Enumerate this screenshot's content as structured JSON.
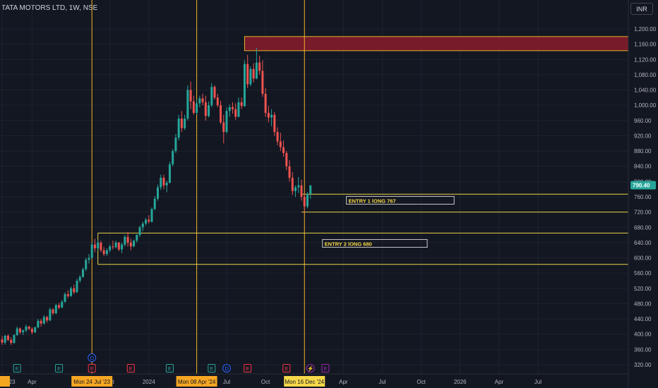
{
  "header": {
    "symbol_title": "TATA MOTORS LTD, 1W, NSE",
    "currency": "INR"
  },
  "chart_data": {
    "type": "candlestick",
    "price_axis": {
      "ticks": [
        1200,
        1160,
        1120,
        1080,
        1040,
        1000,
        960,
        920,
        880,
        840,
        800,
        760,
        720,
        680,
        640,
        600,
        560,
        520,
        480,
        440,
        400,
        360,
        320
      ],
      "tick_labels": [
        "1,200.00",
        "1,160.00",
        "1,120.00",
        "1,080.00",
        "1,040.00",
        "1,000.00",
        "960.00",
        "920.00",
        "880.00",
        "840.00",
        "800.00",
        "760.00",
        "720.00",
        "680.00",
        "640.00",
        "600.00",
        "560.00",
        "520.00",
        "480.00",
        "440.00",
        "400.00",
        "360.00",
        "320.00"
      ],
      "range": [
        307,
        1220
      ]
    },
    "current_price": {
      "value": 790.4,
      "label": "790.40",
      "color": "#26a69a"
    },
    "time_axis": {
      "labels": [
        {
          "text": "22 '23",
          "idx": 0
        },
        {
          "text": "Apr",
          "idx": 10
        },
        {
          "text": "Oct",
          "idx": 36
        },
        {
          "text": "2024",
          "idx": 49
        },
        {
          "text": "Jul",
          "idx": 75
        },
        {
          "text": "Oct",
          "idx": 88
        },
        {
          "text": "Apr",
          "idx": 114
        },
        {
          "text": "Jul",
          "idx": 127
        },
        {
          "text": "Oct",
          "idx": 140
        },
        {
          "text": "2026",
          "idx": 153
        },
        {
          "text": "Apr",
          "idx": 166
        },
        {
          "text": "Jul",
          "idx": 179
        }
      ],
      "highlighted": [
        {
          "text": "Mon 24 Jul '23",
          "idx": 30,
          "style": "orange"
        },
        {
          "text": "Mon 08 Apr '24",
          "idx": 65,
          "style": "orange"
        },
        {
          "text": "Mon 16 Dec '24",
          "idx": 101,
          "style": "yellow"
        }
      ]
    },
    "vertical_markers": [
      30,
      65,
      101
    ],
    "horizontal_lines": [
      767,
      720,
      665,
      583
    ],
    "zone": {
      "low": 1143,
      "high": 1180,
      "from_idx": 81
    },
    "annotations": [
      {
        "text": "ENTRY 1 lONG 767",
        "price": 750,
        "from_idx": 115,
        "to_idx": 151
      },
      {
        "text": "ENTRY 2 lONG 680",
        "price": 637,
        "from_idx": 107,
        "to_idx": 142
      }
    ],
    "event_badges": [
      {
        "glyph": "E",
        "idx": 5,
        "color": "#26a69a"
      },
      {
        "glyph": "E",
        "idx": 19,
        "color": "#26a69a"
      },
      {
        "glyph": "D",
        "idx": 30,
        "color": "#2962ff",
        "row": "upper"
      },
      {
        "glyph": "E",
        "idx": 30,
        "color": "#f23645"
      },
      {
        "glyph": "E",
        "idx": 43,
        "color": "#f23645"
      },
      {
        "glyph": "E",
        "idx": 56,
        "color": "#26a69a"
      },
      {
        "glyph": "E",
        "idx": 70,
        "color": "#26a69a"
      },
      {
        "glyph": "D",
        "idx": 75,
        "color": "#2962ff"
      },
      {
        "glyph": "E",
        "idx": 82,
        "color": "#f23645"
      },
      {
        "glyph": "E",
        "idx": 95,
        "color": "#f23645"
      },
      {
        "glyph": "⚡",
        "idx": 103,
        "color": "#9c27b0"
      },
      {
        "glyph": "E",
        "idx": 108,
        "color": "#9c27b0"
      }
    ],
    "candles": [
      [
        386,
        395,
        372,
        378
      ],
      [
        378,
        398,
        373,
        396
      ],
      [
        396,
        400,
        382,
        385
      ],
      [
        385,
        392,
        372,
        377
      ],
      [
        377,
        400,
        375,
        398
      ],
      [
        398,
        420,
        395,
        415
      ],
      [
        415,
        418,
        400,
        405
      ],
      [
        405,
        412,
        398,
        410
      ],
      [
        410,
        425,
        405,
        420
      ],
      [
        420,
        422,
        410,
        414
      ],
      [
        414,
        418,
        400,
        405
      ],
      [
        405,
        420,
        403,
        418
      ],
      [
        418,
        440,
        415,
        435
      ],
      [
        435,
        440,
        420,
        428
      ],
      [
        428,
        450,
        425,
        445
      ],
      [
        445,
        448,
        430,
        436
      ],
      [
        436,
        470,
        434,
        465
      ],
      [
        465,
        468,
        450,
        455
      ],
      [
        455,
        480,
        452,
        476
      ],
      [
        476,
        482,
        465,
        470
      ],
      [
        470,
        490,
        468,
        485
      ],
      [
        485,
        510,
        482,
        505
      ],
      [
        505,
        515,
        495,
        500
      ],
      [
        500,
        525,
        498,
        520
      ],
      [
        520,
        530,
        505,
        510
      ],
      [
        510,
        545,
        508,
        540
      ],
      [
        540,
        555,
        535,
        550
      ],
      [
        550,
        575,
        548,
        570
      ],
      [
        570,
        600,
        565,
        595
      ],
      [
        595,
        610,
        585,
        600
      ],
      [
        600,
        640,
        598,
        635
      ],
      [
        635,
        650,
        615,
        625
      ],
      [
        625,
        648,
        620,
        640
      ],
      [
        640,
        645,
        615,
        620
      ],
      [
        620,
        628,
        605,
        610
      ],
      [
        610,
        625,
        605,
        620
      ],
      [
        620,
        635,
        615,
        630
      ],
      [
        630,
        645,
        622,
        628
      ],
      [
        628,
        645,
        625,
        640
      ],
      [
        640,
        642,
        618,
        622
      ],
      [
        622,
        640,
        612,
        635
      ],
      [
        635,
        660,
        630,
        655
      ],
      [
        655,
        668,
        630,
        640
      ],
      [
        640,
        650,
        620,
        630
      ],
      [
        630,
        648,
        628,
        645
      ],
      [
        645,
        662,
        640,
        660
      ],
      [
        660,
        685,
        655,
        680
      ],
      [
        680,
        695,
        670,
        690
      ],
      [
        690,
        705,
        685,
        700
      ],
      [
        700,
        712,
        690,
        695
      ],
      [
        695,
        732,
        692,
        728
      ],
      [
        728,
        762,
        725,
        755
      ],
      [
        755,
        792,
        750,
        785
      ],
      [
        785,
        818,
        778,
        810
      ],
      [
        810,
        818,
        780,
        790
      ],
      [
        790,
        802,
        772,
        797
      ],
      [
        797,
        852,
        795,
        845
      ],
      [
        845,
        885,
        840,
        880
      ],
      [
        880,
        925,
        875,
        915
      ],
      [
        915,
        975,
        908,
        965
      ],
      [
        965,
        985,
        930,
        940
      ],
      [
        940,
        975,
        935,
        965
      ],
      [
        965,
        1052,
        960,
        1040
      ],
      [
        1040,
        1062,
        990,
        1010
      ],
      [
        1010,
        1025,
        975,
        980
      ],
      [
        980,
        1015,
        975,
        1005
      ],
      [
        1005,
        1025,
        995,
        1018
      ],
      [
        1018,
        1030,
        1000,
        1008
      ],
      [
        1008,
        1025,
        960,
        972
      ],
      [
        972,
        1010,
        968,
        1000
      ],
      [
        1000,
        1058,
        995,
        1048
      ],
      [
        1048,
        1052,
        1015,
        1020
      ],
      [
        1020,
        1030,
        995,
        1000
      ],
      [
        1000,
        1012,
        950,
        955
      ],
      [
        955,
        975,
        900,
        930
      ],
      [
        930,
        995,
        926,
        985
      ],
      [
        985,
        1002,
        970,
        995
      ],
      [
        995,
        1008,
        978,
        990
      ],
      [
        990,
        1005,
        962,
        970
      ],
      [
        970,
        1020,
        968,
        1008
      ],
      [
        1008,
        1020,
        990,
        998
      ],
      [
        998,
        1118,
        995,
        1108
      ],
      [
        1108,
        1132,
        1045,
        1055
      ],
      [
        1055,
        1102,
        1050,
        1095
      ],
      [
        1095,
        1110,
        1060,
        1070
      ],
      [
        1070,
        1150,
        1068,
        1112
      ],
      [
        1112,
        1130,
        1080,
        1090
      ],
      [
        1090,
        1118,
        1022,
        1030
      ],
      [
        1030,
        1045,
        970,
        980
      ],
      [
        980,
        998,
        955,
        968
      ],
      [
        968,
        990,
        945,
        975
      ],
      [
        975,
        982,
        920,
        930
      ],
      [
        930,
        942,
        895,
        905
      ],
      [
        905,
        928,
        880,
        890
      ],
      [
        890,
        908,
        865,
        875
      ],
      [
        875,
        880,
        830,
        840
      ],
      [
        840,
        856,
        800,
        810
      ],
      [
        810,
        825,
        765,
        775
      ],
      [
        775,
        790,
        760,
        785
      ],
      [
        785,
        812,
        770,
        790
      ],
      [
        790,
        805,
        750,
        760
      ],
      [
        760,
        768,
        720,
        735
      ],
      [
        735,
        772,
        730,
        768
      ],
      [
        768,
        790,
        755,
        790
      ]
    ]
  }
}
